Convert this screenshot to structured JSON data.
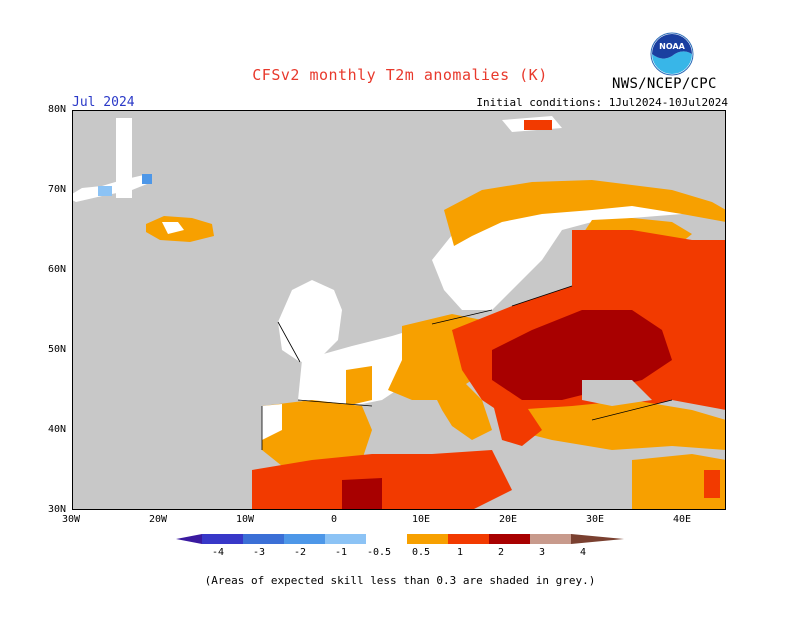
{
  "header": {
    "title": "CFSv2 monthly T2m anomalies (K)",
    "month": "Jul 2024",
    "initial_conditions": "Initial conditions: 1Jul2024-10Jul2024",
    "agency": "NWS/NCEP/CPC",
    "logo_text": "NOAA"
  },
  "map": {
    "region": "Europe",
    "lon_range": [
      -30,
      45
    ],
    "lat_range": [
      30,
      80
    ],
    "lat_ticks": [
      "80N",
      "70N",
      "60N",
      "50N",
      "40N",
      "30N"
    ],
    "lon_ticks": [
      "30W",
      "20W",
      "10W",
      "0",
      "10E",
      "20E",
      "30E",
      "40E"
    ]
  },
  "colorbar": {
    "labels": [
      "-4",
      "-3",
      "-2",
      "-1",
      "-0.5",
      "0.5",
      "1",
      "2",
      "3",
      "4"
    ],
    "colors": {
      "below_-4": "#3a1aa0",
      "-4_-3": "#3838c8",
      "-3_-2": "#3b6fd6",
      "-2_-1": "#4d97e8",
      "-1_-0.5": "#8cc3f5",
      "-0.5_0.5": "#ffffff",
      "0.5_1": "#f7a000",
      "1_2": "#f23a00",
      "2_3": "#a80000",
      "3_4": "#c89a8c",
      "above_4": "#7a4030"
    },
    "no_skill_color": "#c8c8c8",
    "land_color": "#c8c8c8",
    "ocean_color": "#c8c8c8"
  },
  "footnote": "(Areas of expected skill less than 0.3 are shaded in grey.)"
}
